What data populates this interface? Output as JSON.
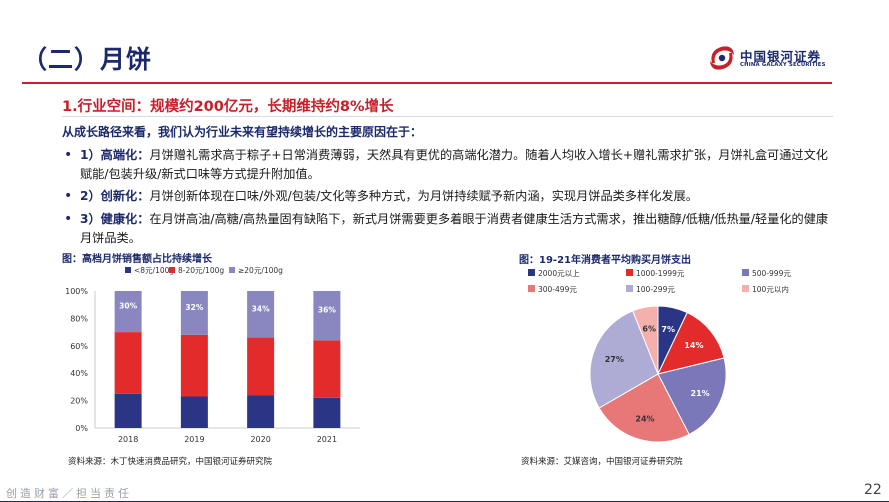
{
  "header": {
    "title": "（二）月饼",
    "logo_cn": "中国银河证券",
    "logo_en": "CHINA GALAXY SECURITIES"
  },
  "section": {
    "heading": "1.行业空间：规模约200亿元，长期维持约8%增长",
    "intro": "从成长路径来看，我们认为行业未来有望持续增长的主要原因在于："
  },
  "bullets": [
    {
      "lead": "1）高端化：",
      "text": "月饼赠礼需求高于粽子+日常消费薄弱，天然具有更优的高端化潜力。随着人均收入增长+赠礼需求扩张，月饼礼盒可通过文化赋能/包装升级/新式口味等方式提升附加值。"
    },
    {
      "lead": "2）创新化：",
      "text": "月饼创新体现在口味/外观/包装/文化等多种方式，为月饼持续赋予新内涵，实现月饼品类多样化发展。"
    },
    {
      "lead": "3）健康化：",
      "text": "在月饼高油/高糖/高热量固有缺陷下，新式月饼需要更多着眼于消费者健康生活方式需求，推出糖醇/低糖/低热量/轻量化的健康月饼品类。"
    }
  ],
  "figures": {
    "left_caption": "图：高档月饼销售额占比持续增长",
    "right_caption": "图：19-21年消费者平均购买月饼支出",
    "left_source": "资料来源：木丁快速消费品研究，中国银河证券研究院",
    "right_source": "资料来源：艾媒咨询，中国银河证券研究院"
  },
  "footer": {
    "slogan": "创造财富／担当责任",
    "page_number": "22"
  },
  "chart_data": [
    {
      "type": "bar",
      "stacked": true,
      "percent_stacked": true,
      "title": "图：高档月饼销售额占比持续增长",
      "categories": [
        "2018",
        "2019",
        "2020",
        "2021"
      ],
      "series": [
        {
          "name": "<8元/100g",
          "color": "#2b3585",
          "values": [
            25,
            23,
            24,
            22
          ]
        },
        {
          "name": "8-20元/100g",
          "color": "#e32b2b",
          "values": [
            45,
            45,
            42,
            42
          ]
        },
        {
          "name": "≥20元/100g",
          "color": "#8a86c0",
          "values": [
            30,
            32,
            34,
            36
          ]
        }
      ],
      "data_labels": [
        "30%",
        "32%",
        "34%",
        "36%"
      ],
      "ylim": [
        0,
        100
      ],
      "yticks": [
        "0%",
        "20%",
        "40%",
        "60%",
        "80%",
        "100%"
      ],
      "grid": false,
      "legend_position": "top"
    },
    {
      "type": "pie",
      "title": "图：19-21年消费者平均购买月饼支出",
      "legend_position": "top",
      "slices": [
        {
          "name": "2000元以上",
          "value": 7,
          "label": "7%",
          "color": "#2b3585"
        },
        {
          "name": "1000-1999元",
          "value": 14,
          "label": "14%",
          "color": "#e32b2b"
        },
        {
          "name": "500-999元",
          "value": 21,
          "label": "21%",
          "color": "#7a78b8"
        },
        {
          "name": "300-499元",
          "value": 24,
          "label": "24%",
          "color": "#e87878"
        },
        {
          "name": "100-299元",
          "value": 27,
          "label": "27%",
          "color": "#aeacd4"
        },
        {
          "name": "100元以内",
          "value": 6,
          "label": "6%",
          "color": "#f4b0ac"
        }
      ]
    }
  ]
}
